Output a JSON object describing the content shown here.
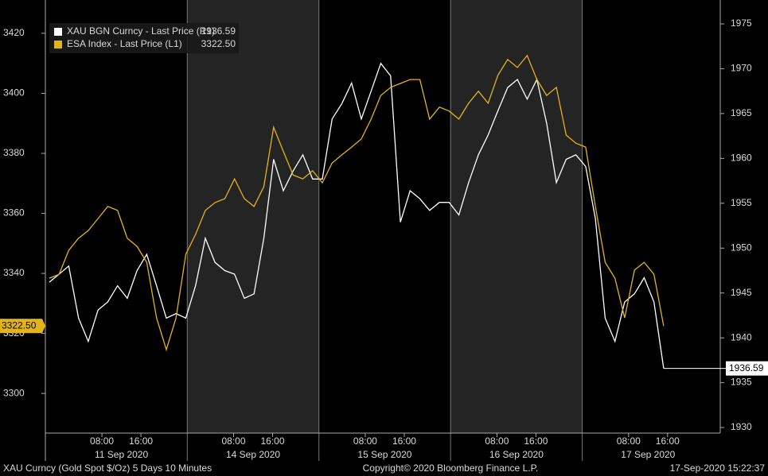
{
  "chart_data": {
    "type": "line",
    "footer_left": "XAU Curncy (Gold Spot  $/Oz) 5 Days 10 Minutes",
    "footer_center": "Copyright© 2020 Bloomberg Finance L.P.",
    "footer_right": "17-Sep-2020 15:22:37",
    "x": [
      -2.8,
      -0.8,
      1.2,
      3.2,
      5.2,
      7.2,
      9.2,
      11.2,
      13.2,
      15.2,
      17.2,
      19.2,
      21.2,
      23.2,
      25.2,
      27.2,
      29.2,
      31.2,
      33.2,
      35.2,
      37.2,
      39.2,
      41.2,
      43.2,
      45.2,
      47.2,
      49.2,
      51.2,
      53.2,
      55.2,
      57.2,
      59.2,
      61.2,
      63.2,
      65.2,
      67.2,
      69.2,
      71.2,
      73.2,
      75.2,
      77.2,
      79.2,
      81.2,
      83.2,
      85.2,
      87.2,
      89.2,
      91.2,
      93.2,
      95.2,
      97.2,
      99.2,
      101.2,
      103.2,
      105.2,
      107.2,
      109.2,
      111.2,
      113.2,
      115.2,
      117.2,
      119.2,
      121.2,
      123.2
    ],
    "xlim": [
      -3.6,
      134.8
    ],
    "xticks": [
      {
        "value": 8,
        "label": "08:00"
      },
      {
        "value": 16,
        "label": "16:00"
      },
      {
        "value": 35,
        "label": "08:00"
      },
      {
        "value": 43,
        "label": "16:00"
      },
      {
        "value": 62,
        "label": "08:00"
      },
      {
        "value": 70,
        "label": "16:00"
      },
      {
        "value": 89,
        "label": "08:00"
      },
      {
        "value": 97,
        "label": "16:00"
      },
      {
        "value": 116,
        "label": "08:00"
      },
      {
        "value": 124,
        "label": "16:00"
      }
    ],
    "dates": [
      "11 Sep 2020",
      "14 Sep 2020",
      "15 Sep 2020",
      "16 Sep 2020",
      "17 Sep 2020"
    ],
    "ylim": [
      3286.8,
      3431.1
    ],
    "yticks": [
      3300,
      3320,
      3340,
      3360,
      3380,
      3400,
      3420
    ],
    "y2lim": [
      1929.38,
      1977.66
    ],
    "y2ticks": [
      1930,
      1935,
      1940,
      1945,
      1950,
      1955,
      1960,
      1965,
      1970,
      1975
    ],
    "series": [
      {
        "name": "XAU BGN Curncy - Last Price (R1)",
        "color": "#ffffff",
        "axis": "y2",
        "last_label": "1936.59",
        "values": [
          1946.2,
          1947.1,
          1948.0,
          1942.2,
          1939.6,
          1943.1,
          1944.0,
          1945.8,
          1944.4,
          1947.5,
          1949.3,
          1945.8,
          1942.2,
          1942.7,
          1942.2,
          1945.8,
          1951.1,
          1948.4,
          1947.5,
          1947.1,
          1944.4,
          1944.9,
          1951.1,
          1959.9,
          1956.4,
          1958.6,
          1960.4,
          1957.7,
          1957.7,
          1964.4,
          1966.1,
          1968.4,
          1964.4,
          1967.5,
          1970.6,
          1969.2,
          1952.9,
          1956.4,
          1955.5,
          1954.2,
          1955.1,
          1955.1,
          1953.7,
          1957.3,
          1960.4,
          1962.6,
          1965.3,
          1967.9,
          1968.8,
          1966.6,
          1968.8,
          1963.9,
          1957.3,
          1959.9,
          1960.4,
          1959.1,
          1953.3,
          1942.2,
          1939.6,
          1944.0,
          1944.9,
          1946.7,
          1944.0,
          1936.59
        ]
      },
      {
        "name": "ESA Index - Last Price (L1)",
        "color": "#e2b419",
        "axis": "y",
        "last_label": "3322.50",
        "values": [
          3338.4,
          3339.7,
          3347.7,
          3351.7,
          3354.3,
          3358.3,
          3362.3,
          3361.0,
          3351.7,
          3349.0,
          3343.7,
          3325.2,
          3314.6,
          3325.2,
          3346.4,
          3353.0,
          3361.0,
          3363.6,
          3364.9,
          3371.5,
          3364.9,
          3362.3,
          3368.9,
          3388.7,
          3380.7,
          3372.8,
          3371.5,
          3374.2,
          3370.2,
          3376.8,
          3379.5,
          3382.1,
          3384.8,
          3391.4,
          3399.3,
          3402.0,
          3403.3,
          3404.6,
          3404.6,
          3391.4,
          3395.4,
          3394.1,
          3391.4,
          3396.7,
          3400.7,
          3396.7,
          3406.0,
          3411.3,
          3408.6,
          3412.6,
          3404.6,
          3399.3,
          3402.0,
          3386.1,
          3383.4,
          3382.1,
          3362.3,
          3343.7,
          3338.4,
          3325.2,
          3341.1,
          3343.7,
          3339.7,
          3322.5
        ]
      }
    ]
  }
}
